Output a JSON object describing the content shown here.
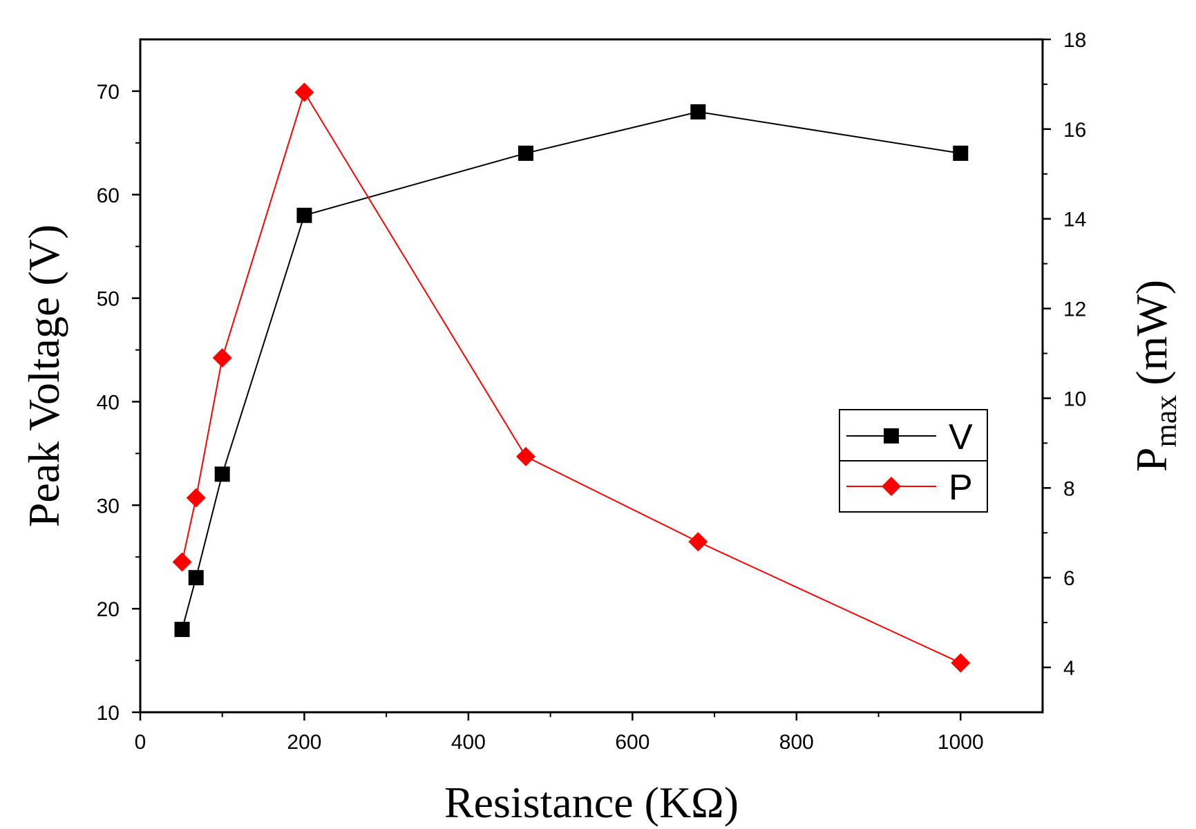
{
  "chart_data": {
    "type": "line",
    "xlabel": "Resistance (KΩ)",
    "ylabel_left": "Peak Voltage (V)",
    "ylabel_right_main": "P",
    "ylabel_right_sub": "max",
    "ylabel_right_unit": "(mW)",
    "xlim": [
      0,
      1100
    ],
    "ylim_left": [
      10,
      75
    ],
    "ylim_right": [
      3,
      18
    ],
    "x_ticks": [
      0,
      200,
      400,
      600,
      800,
      1000
    ],
    "y_left_ticks": [
      10,
      20,
      30,
      40,
      50,
      60,
      70
    ],
    "y_right_ticks": [
      4,
      6,
      8,
      10,
      12,
      14,
      16,
      18
    ],
    "legend_position": "right-center",
    "series": [
      {
        "name": "V",
        "axis": "left",
        "marker": "square",
        "color": "#000000",
        "x": [
          51,
          68,
          100,
          200,
          470,
          680,
          1000
        ],
        "values": [
          18,
          23,
          33,
          58,
          64,
          68,
          64
        ]
      },
      {
        "name": "P",
        "axis": "right",
        "marker": "diamond",
        "color": "#ff0000",
        "x": [
          51,
          68,
          100,
          200,
          470,
          680,
          1000
        ],
        "values": [
          6.35,
          7.78,
          10.9,
          16.82,
          8.7,
          6.8,
          4.1
        ]
      }
    ]
  }
}
